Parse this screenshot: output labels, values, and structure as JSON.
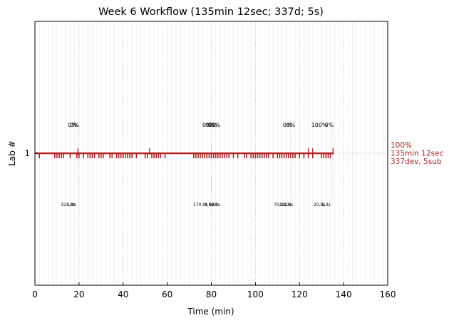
{
  "chart_data": {
    "type": "line",
    "title": "Week 6 Workflow (135min 12sec; 337d; 5s)",
    "xlabel": "Time (min)",
    "ylabel": "Lab #",
    "xlim": [
      0,
      160
    ],
    "ylim": [
      0.5,
      1.5
    ],
    "x_ticks": [
      0,
      20,
      40,
      60,
      80,
      100,
      120,
      140,
      160
    ],
    "y_ticks": [
      1
    ],
    "grid": "vertical dotted, major every 20 min and minor every 2 min",
    "colors": {
      "line": "#b22222",
      "annotation": "#b22222",
      "grid": "#bbbbbb"
    },
    "series": [
      {
        "y": 1,
        "x": [
          0,
          135.2
        ],
        "events": [
          2,
          9,
          10,
          11,
          12,
          13,
          16,
          19,
          20,
          22,
          24,
          25,
          26,
          27,
          29,
          30,
          31,
          34,
          35,
          37,
          38,
          39,
          40,
          41,
          42,
          43,
          44,
          46,
          50,
          51,
          53,
          54,
          55,
          56,
          57,
          59,
          72,
          73,
          74,
          75,
          76,
          77,
          78,
          79,
          80,
          81,
          82,
          83,
          84,
          85,
          86,
          87,
          88,
          90,
          92,
          95,
          96,
          98,
          99,
          100,
          101,
          102,
          103,
          104,
          105,
          106,
          108,
          110,
          111,
          112,
          113,
          114,
          115,
          116,
          117,
          118,
          120,
          122,
          124,
          126,
          130,
          131,
          132,
          133,
          134
        ]
      }
    ],
    "submission_marks": [
      19.5,
      52,
      124,
      126,
      135.2
    ],
    "reference_lines_x": [
      19.5,
      80,
      116,
      135
    ],
    "pct_labels": [
      {
        "x": 17,
        "text": "0%"
      },
      {
        "x": 18,
        "text": "0%"
      },
      {
        "x": 78,
        "text": "0%"
      },
      {
        "x": 79.5,
        "text": "0%"
      },
      {
        "x": 80.5,
        "text": "0%"
      },
      {
        "x": 82,
        "text": "0%"
      },
      {
        "x": 114.5,
        "text": "0%"
      },
      {
        "x": 116,
        "text": "0%"
      },
      {
        "x": 129,
        "text": "100%"
      },
      {
        "x": 133.5,
        "text": "0%"
      }
    ],
    "time_labels": [
      {
        "x": 15,
        "text": "324,0s"
      },
      {
        "x": 16.5,
        "text": "1,0s"
      },
      {
        "x": 75,
        "text": "170,0s"
      },
      {
        "x": 79,
        "text": "8,0s"
      },
      {
        "x": 81,
        "text": "6,0s"
      },
      {
        "x": 82,
        "text": "0,0s"
      },
      {
        "x": 111,
        "text": "70,0s"
      },
      {
        "x": 113.5,
        "text": "12,0s"
      },
      {
        "x": 115,
        "text": "1,0s"
      },
      {
        "x": 129,
        "text": "20,0s"
      },
      {
        "x": 132,
        "text": "1,3s"
      }
    ],
    "side_annotation": [
      "100%",
      "135min 12sec",
      "337dev, 5sub"
    ]
  }
}
